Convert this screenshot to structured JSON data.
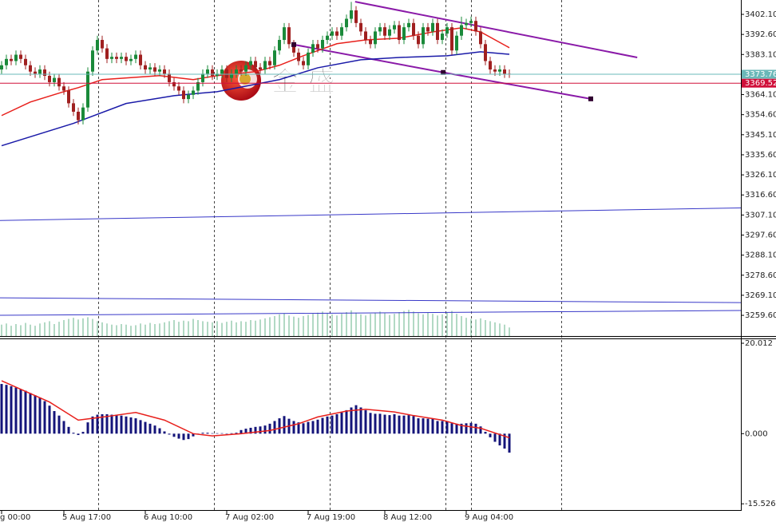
{
  "chart_data": [
    {
      "type": "candlestick",
      "categories": [
        "g 00:00",
        null,
        null,
        null,
        null,
        null,
        null,
        null,
        null,
        null,
        null,
        null,
        null,
        "5 Aug 17:00",
        null,
        null,
        null,
        null,
        null,
        null,
        null,
        null,
        null,
        null,
        null,
        null,
        null,
        null,
        null,
        null,
        "6 Aug 10:00",
        null,
        null,
        null,
        null,
        null,
        null,
        null,
        null,
        null,
        null,
        null,
        null,
        null,
        null,
        null,
        null,
        "7 Aug 02:00",
        null,
        null,
        null,
        null,
        null,
        null,
        null,
        null,
        null,
        null,
        null,
        null,
        null,
        null,
        null,
        null,
        "7 Aug 19:00",
        null,
        null,
        null,
        null,
        null,
        null,
        null,
        null,
        null,
        null,
        null,
        null,
        null,
        null,
        null,
        "8 Aug 12:00",
        null,
        null,
        null,
        null,
        null,
        null,
        null,
        null,
        null,
        null,
        null,
        null,
        null,
        null,
        null,
        null,
        "9 Aug 04:00",
        null,
        null,
        null,
        null,
        null,
        null,
        null,
        null,
        null
      ],
      "open": [
        3376,
        3378,
        3381,
        3380,
        3383,
        3381,
        3378,
        3375,
        3374,
        3376,
        3373,
        3370,
        3372,
        3368,
        3366,
        3360,
        3356,
        3352,
        3358,
        3375,
        3385,
        3390,
        3386,
        3381,
        3382,
        3381,
        3382,
        3380,
        3381,
        3383,
        3378,
        3376,
        3377,
        3375,
        3376,
        3374,
        3370,
        3368,
        3366,
        3362,
        3364,
        3366,
        3370,
        3374,
        3376,
        3373,
        3374,
        3376,
        3372,
        3374,
        3376,
        3375,
        3378,
        3380,
        3377,
        3376,
        3380,
        3378,
        3385,
        3390,
        3396,
        3388,
        3384,
        3380,
        3378,
        3384,
        3388,
        3386,
        3390,
        3392,
        3394,
        3392,
        3396,
        3400,
        3404,
        3398,
        3394,
        3390,
        3388,
        3394,
        3396,
        3392,
        3395,
        3397,
        3390,
        3396,
        3398,
        3392,
        3388,
        3396,
        3394,
        3398,
        3390,
        3393,
        3396,
        3385,
        3392,
        3397,
        3398,
        3399,
        3394,
        3388,
        3380,
        3376,
        3375,
        3376,
        3374
      ],
      "high": [
        3380,
        3383,
        3383,
        3385,
        3385,
        3383,
        3380,
        3377,
        3378,
        3378,
        3375,
        3374,
        3374,
        3370,
        3368,
        3362,
        3358,
        3360,
        3377,
        3387,
        3392,
        3392,
        3388,
        3384,
        3384,
        3384,
        3384,
        3383,
        3385,
        3385,
        3380,
        3379,
        3379,
        3378,
        3378,
        3376,
        3372,
        3370,
        3368,
        3366,
        3368,
        3372,
        3376,
        3378,
        3378,
        3376,
        3378,
        3378,
        3376,
        3378,
        3378,
        3380,
        3382,
        3382,
        3379,
        3382,
        3382,
        3387,
        3392,
        3398,
        3398,
        3390,
        3386,
        3382,
        3386,
        3390,
        3390,
        3392,
        3394,
        3396,
        3396,
        3398,
        3402,
        3408,
        3406,
        3400,
        3396,
        3392,
        3396,
        3398,
        3398,
        3397,
        3399,
        3399,
        3398,
        3400,
        3400,
        3394,
        3398,
        3398,
        3400,
        3400,
        3395,
        3398,
        3398,
        3394,
        3401,
        3400,
        3401,
        3401,
        3396,
        3390,
        3382,
        3378,
        3378,
        3378,
        3376
      ],
      "low": [
        3374,
        3376,
        3378,
        3378,
        3379,
        3376,
        3373,
        3372,
        3372,
        3371,
        3368,
        3368,
        3366,
        3364,
        3358,
        3354,
        3350,
        3350,
        3356,
        3373,
        3383,
        3384,
        3379,
        3379,
        3379,
        3379,
        3378,
        3378,
        3379,
        3376,
        3374,
        3374,
        3373,
        3373,
        3372,
        3368,
        3366,
        3364,
        3360,
        3360,
        3362,
        3364,
        3368,
        3372,
        3371,
        3371,
        3372,
        3370,
        3370,
        3372,
        3373,
        3373,
        3376,
        3375,
        3374,
        3374,
        3376,
        3376,
        3383,
        3388,
        3386,
        3382,
        3378,
        3376,
        3376,
        3382,
        3384,
        3384,
        3388,
        3390,
        3390,
        3390,
        3394,
        3398,
        3396,
        3392,
        3388,
        3386,
        3386,
        3392,
        3390,
        3390,
        3393,
        3388,
        3388,
        3394,
        3390,
        3386,
        3386,
        3392,
        3392,
        3388,
        3388,
        3391,
        3383,
        3383,
        3390,
        3395,
        3396,
        3392,
        3386,
        3378,
        3374,
        3373,
        3373,
        3372,
        3372
      ],
      "close": [
        3378,
        3381,
        3380,
        3383,
        3381,
        3378,
        3375,
        3374,
        3376,
        3373,
        3370,
        3372,
        3368,
        3366,
        3360,
        3356,
        3352,
        3358,
        3375,
        3385,
        3390,
        3386,
        3381,
        3382,
        3381,
        3382,
        3380,
        3381,
        3383,
        3378,
        3376,
        3377,
        3375,
        3376,
        3374,
        3370,
        3368,
        3366,
        3362,
        3364,
        3366,
        3370,
        3374,
        3376,
        3373,
        3374,
        3376,
        3372,
        3374,
        3376,
        3375,
        3378,
        3380,
        3377,
        3376,
        3380,
        3378,
        3385,
        3390,
        3396,
        3388,
        3384,
        3380,
        3378,
        3384,
        3388,
        3386,
        3390,
        3392,
        3394,
        3392,
        3396,
        3400,
        3404,
        3398,
        3394,
        3390,
        3388,
        3394,
        3396,
        3392,
        3395,
        3397,
        3390,
        3396,
        3398,
        3392,
        3388,
        3396,
        3394,
        3398,
        3390,
        3393,
        3396,
        3385,
        3392,
        3397,
        3398,
        3399,
        3394,
        3388,
        3380,
        3376,
        3375,
        3376,
        3374,
        3373.76
      ],
      "up_color": "#1a8a3a",
      "down_color": "#a02020",
      "ylim": [
        3249.8,
        3408.9
      ],
      "yticks": [
        {
          "value": 3402.1,
          "label": "3402.10"
        },
        {
          "value": 3392.6,
          "label": "3392.60"
        },
        {
          "value": 3383.1,
          "label": "3383.10"
        },
        {
          "value": 3373.6,
          "label": "3373.60"
        },
        {
          "value": 3364.1,
          "label": "3364.10"
        },
        {
          "value": 3354.6,
          "label": "3354.60"
        },
        {
          "value": 3345.1,
          "label": "3345.10"
        },
        {
          "value": 3335.6,
          "label": "3335.60"
        },
        {
          "value": 3326.1,
          "label": "3326.10"
        },
        {
          "value": 3316.6,
          "label": "3316.60"
        },
        {
          "value": 3307.1,
          "label": "3307.10"
        },
        {
          "value": 3297.6,
          "label": "3297.60"
        },
        {
          "value": 3288.1,
          "label": "3288.10"
        },
        {
          "value": 3278.6,
          "label": "3278.60"
        },
        {
          "value": 3269.1,
          "label": "3269.10"
        },
        {
          "value": 3259.6,
          "label": "3259.60"
        }
      ],
      "volume": [
        2000,
        2200,
        1800,
        2100,
        1900,
        2300,
        2000,
        1800,
        2200,
        2400,
        2600,
        2100,
        2500,
        2800,
        3000,
        3200,
        2900,
        3100,
        3300,
        3000,
        2600,
        2400,
        2200,
        2000,
        1900,
        2100,
        2000,
        1800,
        1900,
        2200,
        2000,
        2300,
        2100,
        2200,
        2400,
        2600,
        2800,
        2500,
        2700,
        2600,
        3000,
        2800,
        2600,
        2500,
        2400,
        2600,
        2300,
        2500,
        2700,
        2400,
        2600,
        2500,
        2800,
        2700,
        2900,
        3100,
        3300,
        3500,
        3800,
        4000,
        3600,
        3400,
        3200,
        3500,
        3700,
        3900,
        4100,
        4300,
        4000,
        3800,
        3600,
        3900,
        4200,
        4500,
        4100,
        3800,
        3600,
        3900,
        4100,
        4300,
        4000,
        3700,
        3900,
        4200,
        4400,
        4600,
        4300,
        4000,
        3800,
        4100,
        3900,
        3600,
        3800,
        4100,
        4400,
        3900,
        3500,
        3200,
        3000,
        2900,
        3100,
        2800,
        2600,
        2400,
        2200,
        2000,
        1500
      ],
      "volume_lim": [
        0,
        14000
      ],
      "volume_color": "#66b38a",
      "overlays": [
        {
          "color": "#e8201c",
          "x": [
            0,
            6,
            13,
            16,
            21,
            33,
            40,
            45,
            53,
            58,
            63,
            70,
            76,
            83,
            90,
            96,
            100,
            106
          ],
          "values": [
            3354.2,
            3360.6,
            3365.5,
            3367.4,
            3371.2,
            3373.1,
            3371.2,
            3373.1,
            3375.0,
            3378.0,
            3382.5,
            3388.2,
            3390.0,
            3390.8,
            3393.8,
            3395.7,
            3393.8,
            3386.3
          ]
        },
        {
          "color": "#1a1aa8",
          "x": [
            0,
            15,
            26,
            36,
            45,
            58,
            66,
            75,
            83,
            93,
            100,
            106
          ],
          "values": [
            3339.9,
            3350.5,
            3359.9,
            3363.6,
            3365.5,
            3371.2,
            3376.8,
            3380.6,
            3381.7,
            3382.5,
            3384.4,
            3383.2
          ]
        }
      ],
      "trendlines": [
        {
          "color": "#8a1aa8",
          "markers": false,
          "x": [
            73.8,
            132.7
          ],
          "values": [
            3408.1,
            3381.7
          ]
        },
        {
          "color": "#8a1aa8",
          "markers": true,
          "x": [
            61,
            92.2,
            123
          ],
          "values": [
            3387.8,
            3374.6,
            3362.1
          ]
        },
        {
          "color": "#3838c8",
          "markers": false,
          "x": [
            -1,
            155
          ],
          "values": [
            3304.5,
            3310.5
          ]
        },
        {
          "color": "#3838c8",
          "markers": false,
          "x": [
            -1,
            155
          ],
          "values": [
            3267.9,
            3265.6
          ]
        },
        {
          "color": "#3838c8",
          "markers": false,
          "x": [
            -1,
            155
          ],
          "values": [
            3259.6,
            3261.9
          ]
        }
      ],
      "price_lines": [
        {
          "value": 3373.76,
          "color": "#6ab8b8"
        },
        {
          "value": 3369.52,
          "color": "#d0103a"
        }
      ],
      "watermark": "金 盛"
    },
    {
      "type": "macd",
      "values": [
        11,
        10.8,
        10.5,
        10.2,
        9.8,
        9.5,
        9.0,
        8.5,
        8.0,
        7.2,
        6.2,
        5.0,
        4.0,
        2.8,
        1.5,
        0.2,
        -0.3,
        0.4,
        2.5,
        3.8,
        4.2,
        4.3,
        4.3,
        4.2,
        4.2,
        4.0,
        3.8,
        3.6,
        3.4,
        3.0,
        2.6,
        2.2,
        1.8,
        1.2,
        0.5,
        -0.2,
        -0.7,
        -1.1,
        -1.4,
        -1.2,
        -0.6,
        0.0,
        0.2,
        0.2,
        0.1,
        0.1,
        0.1,
        0.0,
        0.1,
        0.2,
        0.8,
        1.1,
        1.3,
        1.5,
        1.6,
        1.8,
        2.2,
        2.8,
        3.4,
        3.9,
        3.3,
        2.8,
        2.5,
        2.3,
        2.6,
        2.8,
        3.1,
        3.5,
        3.8,
        4.0,
        4.3,
        4.7,
        5.2,
        5.8,
        6.3,
        5.8,
        5.2,
        4.6,
        4.4,
        4.4,
        4.2,
        4.1,
        4.3,
        4.0,
        4.0,
        4.1,
        3.9,
        3.4,
        3.4,
        3.3,
        3.3,
        2.8,
        2.8,
        2.8,
        2.3,
        2.2,
        2.2,
        2.3,
        2.4,
        2.2,
        1.6,
        0.4,
        -0.8,
        -1.8,
        -2.6,
        -3.3,
        -4.2
      ],
      "color": "#14147a",
      "signal": {
        "color": "#e8201c",
        "x": [
          0,
          10,
          16,
          22,
          28,
          34,
          40,
          44,
          50,
          56,
          62,
          66,
          72,
          76,
          82,
          86,
          92,
          96,
          100,
          106
        ],
        "values": [
          11.7,
          7,
          3,
          3.8,
          4.7,
          3,
          0,
          -0.5,
          0,
          0.7,
          2.2,
          3.7,
          5,
          5.4,
          4.8,
          4,
          3,
          1.8,
          1.2,
          -0.9
        ]
      },
      "ylim": [
        -16.9,
        20.9
      ],
      "yticks": [
        20.012,
        {
          "value": 0,
          "label": "0.000"
        },
        -15.526
      ]
    }
  ]
}
